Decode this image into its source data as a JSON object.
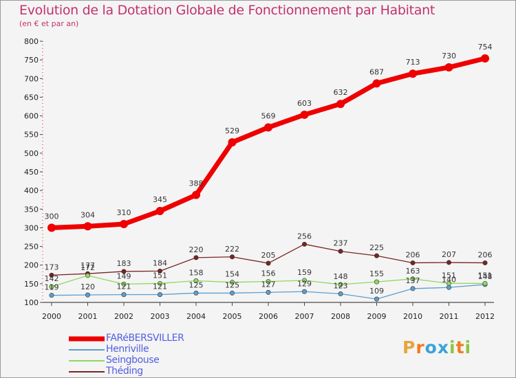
{
  "title": "Evolution de la Dotation Globale de Fonctionnement par Habitant",
  "subtitle": "(en € et par an)",
  "logo": {
    "letters": [
      "P",
      "r",
      "o",
      "x",
      "i",
      "t",
      "i"
    ],
    "colors": [
      "#e8a43a",
      "#ef7c1f",
      "#3aa3d9",
      "#3aa3d9",
      "#8cc63f",
      "#ef7c1f",
      "#8cc63f"
    ]
  },
  "chart_data": {
    "type": "line",
    "title": "Evolution de la Dotation Globale de Fonctionnement par Habitant",
    "subtitle": "(en € et par an)",
    "xlabel": "",
    "ylabel": "",
    "x": [
      "2000",
      "2001",
      "2002",
      "2003",
      "2004",
      "2005",
      "2006",
      "2007",
      "2008",
      "2009",
      "2010",
      "2011",
      "2012"
    ],
    "ylim": [
      100,
      800
    ],
    "yticks": [
      100,
      150,
      200,
      250,
      300,
      350,
      400,
      450,
      500,
      550,
      600,
      650,
      700,
      750,
      800
    ],
    "grid": false,
    "legend_position": "bottom-left",
    "series": [
      {
        "name": "FARéBERSVILLER",
        "color": "#ee0000",
        "line_width": 7,
        "marker_radius": 6,
        "values": [
          300,
          304,
          310,
          345,
          388,
          529,
          569,
          603,
          632,
          687,
          713,
          730,
          754
        ],
        "labels": [
          "300",
          "304",
          "310",
          "345",
          "388",
          "529",
          "569",
          "603",
          "632",
          "687",
          "713",
          "730",
          "754"
        ]
      },
      {
        "name": "Henriville",
        "color": "#5c9ecf",
        "line_width": 1.3,
        "marker_radius": 3.2,
        "values": [
          119,
          120,
          121,
          121,
          125,
          125,
          127,
          129,
          123,
          109,
          137,
          140,
          148
        ],
        "labels": [
          "119",
          "120",
          "121",
          "121",
          "125",
          "125",
          "127",
          "129",
          "123",
          "109",
          "137",
          "140",
          "148"
        ]
      },
      {
        "name": "Seingbouse",
        "color": "#8fd860",
        "line_width": 1.3,
        "marker_radius": 3.2,
        "values": [
          142,
          172,
          149,
          151,
          158,
          154,
          156,
          159,
          148,
          155,
          163,
          151,
          151
        ],
        "labels": [
          "142",
          "172",
          "149",
          "151",
          "158",
          "154",
          "156",
          "159",
          "148",
          "155",
          "163",
          "151",
          "151"
        ]
      },
      {
        "name": "Théding",
        "color": "#7a2323",
        "line_width": 1.3,
        "marker_radius": 3.2,
        "values": [
          173,
          177,
          183,
          184,
          220,
          222,
          205,
          256,
          237,
          225,
          206,
          207,
          206
        ],
        "labels": [
          "173",
          "177",
          "183",
          "184",
          "220",
          "222",
          "205",
          "256",
          "237",
          "225",
          "206",
          "207",
          "206"
        ]
      }
    ]
  }
}
